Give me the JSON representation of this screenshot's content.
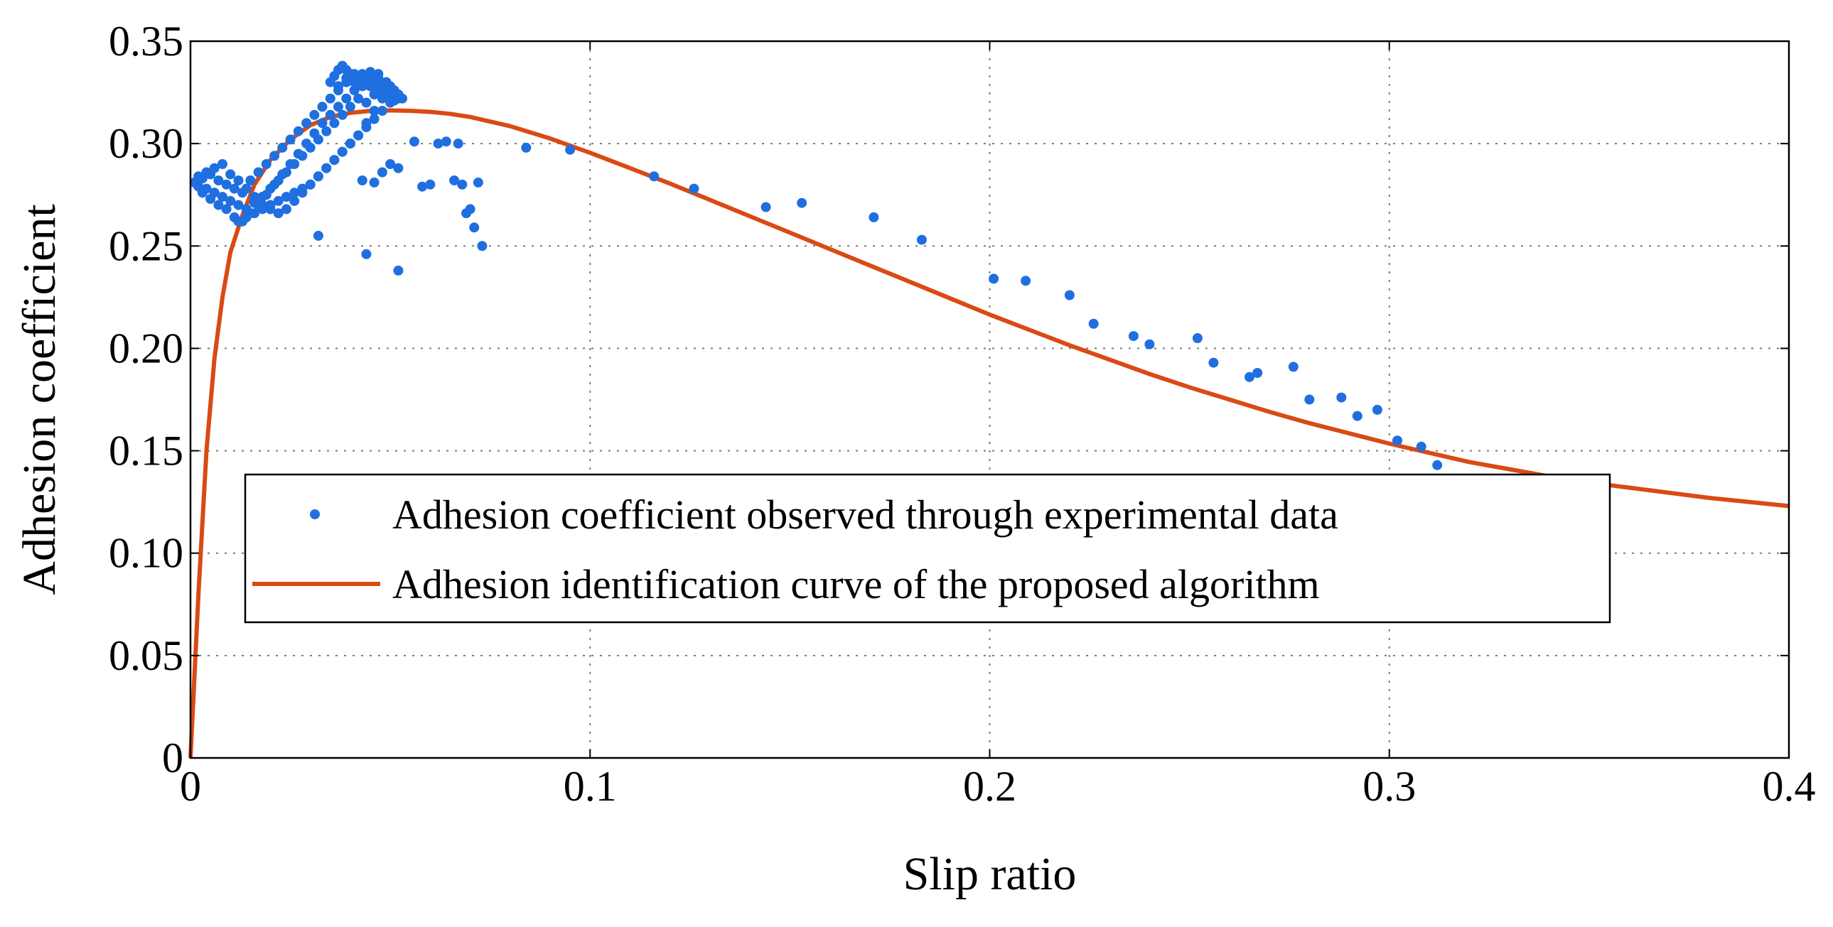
{
  "chart_data": {
    "type": "scatter",
    "title": "",
    "xlabel": "Slip ratio",
    "ylabel": "Adhesion coefficient",
    "xlim": [
      0,
      0.4
    ],
    "ylim": [
      0,
      0.35
    ],
    "grid": true,
    "legend_position": "lower-left",
    "colors": {
      "scatter": "#1f6fe0",
      "curve": "#d94a14",
      "frame": "#000000",
      "grid": "#7a7a7a"
    },
    "x_ticks": [
      "0",
      "0.1",
      "0.2",
      "0.3",
      "0.4"
    ],
    "x_tick_values": [
      0,
      0.1,
      0.2,
      0.3,
      0.4
    ],
    "y_ticks": [
      "0",
      "0.05",
      "0.10",
      "0.15",
      "0.20",
      "0.25",
      "0.30",
      "0.35"
    ],
    "y_tick_values": [
      0,
      0.05,
      0.1,
      0.15,
      0.2,
      0.25,
      0.3,
      0.35
    ],
    "series": [
      {
        "name": "Adhesion coefficient observed through experimental data",
        "kind": "scatter",
        "x": [
          0.001,
          0.002,
          0.003,
          0.004,
          0.005,
          0.006,
          0.007,
          0.008,
          0.009,
          0.01,
          0.011,
          0.012,
          0.013,
          0.014,
          0.015,
          0.016,
          0.017,
          0.018,
          0.019,
          0.02,
          0.021,
          0.022,
          0.023,
          0.024,
          0.025,
          0.026,
          0.027,
          0.028,
          0.029,
          0.03,
          0.031,
          0.032,
          0.033,
          0.034,
          0.035,
          0.036,
          0.037,
          0.038,
          0.039,
          0.04,
          0.041,
          0.042,
          0.043,
          0.044,
          0.045,
          0.046,
          0.047,
          0.048,
          0.049,
          0.05,
          0.051,
          0.052,
          0.002,
          0.004,
          0.006,
          0.008,
          0.01,
          0.012,
          0.014,
          0.016,
          0.018,
          0.02,
          0.022,
          0.024,
          0.026,
          0.028,
          0.03,
          0.032,
          0.034,
          0.036,
          0.038,
          0.04,
          0.042,
          0.044,
          0.046,
          0.048,
          0.05,
          0.003,
          0.005,
          0.007,
          0.009,
          0.011,
          0.013,
          0.015,
          0.017,
          0.019,
          0.021,
          0.023,
          0.025,
          0.027,
          0.029,
          0.031,
          0.033,
          0.035,
          0.037,
          0.039,
          0.041,
          0.043,
          0.045,
          0.047,
          0.049,
          0.012,
          0.014,
          0.016,
          0.018,
          0.02,
          0.022,
          0.024,
          0.026,
          0.028,
          0.03,
          0.032,
          0.034,
          0.036,
          0.038,
          0.04,
          0.042,
          0.044,
          0.046,
          0.048,
          0.05,
          0.052,
          0.036,
          0.037,
          0.038,
          0.039,
          0.04,
          0.041,
          0.042,
          0.043,
          0.044,
          0.045,
          0.046,
          0.047,
          0.048,
          0.049,
          0.05,
          0.051,
          0.052,
          0.053,
          0.035,
          0.037,
          0.039,
          0.041,
          0.043,
          0.045,
          0.047,
          0.049,
          0.051,
          0.032,
          0.044,
          0.052,
          0.04,
          0.043,
          0.046,
          0.048,
          0.05,
          0.052,
          0.056,
          0.058,
          0.06,
          0.062,
          0.064,
          0.066,
          0.067,
          0.068,
          0.069,
          0.07,
          0.071,
          0.072,
          0.073,
          0.084,
          0.095,
          0.116,
          0.126,
          0.144,
          0.153,
          0.171,
          0.183,
          0.201,
          0.209,
          0.22,
          0.226,
          0.236,
          0.24,
          0.252,
          0.256,
          0.265,
          0.267,
          0.276,
          0.28,
          0.288,
          0.292,
          0.297,
          0.302,
          0.308,
          0.312
        ],
        "y": [
          0.281,
          0.279,
          0.283,
          0.278,
          0.285,
          0.276,
          0.282,
          0.274,
          0.28,
          0.272,
          0.278,
          0.27,
          0.276,
          0.268,
          0.282,
          0.271,
          0.286,
          0.274,
          0.29,
          0.278,
          0.294,
          0.282,
          0.298,
          0.286,
          0.302,
          0.29,
          0.306,
          0.294,
          0.31,
          0.298,
          0.314,
          0.302,
          0.318,
          0.306,
          0.322,
          0.31,
          0.326,
          0.314,
          0.33,
          0.318,
          0.334,
          0.322,
          0.33,
          0.32,
          0.328,
          0.324,
          0.332,
          0.326,
          0.33,
          0.328,
          0.326,
          0.324,
          0.284,
          0.286,
          0.288,
          0.29,
          0.285,
          0.282,
          0.278,
          0.274,
          0.27,
          0.268,
          0.266,
          0.268,
          0.272,
          0.276,
          0.28,
          0.284,
          0.288,
          0.292,
          0.296,
          0.3,
          0.304,
          0.308,
          0.312,
          0.316,
          0.32,
          0.276,
          0.273,
          0.27,
          0.268,
          0.264,
          0.262,
          0.266,
          0.27,
          0.275,
          0.28,
          0.285,
          0.29,
          0.295,
          0.3,
          0.305,
          0.31,
          0.314,
          0.318,
          0.322,
          0.326,
          0.33,
          0.332,
          0.334,
          0.33,
          0.262,
          0.264,
          0.266,
          0.268,
          0.27,
          0.272,
          0.274,
          0.276,
          0.278,
          0.28,
          0.284,
          0.288,
          0.292,
          0.296,
          0.3,
          0.304,
          0.31,
          0.316,
          0.322,
          0.326,
          0.322,
          0.333,
          0.336,
          0.338,
          0.336,
          0.334,
          0.332,
          0.33,
          0.328,
          0.333,
          0.335,
          0.331,
          0.329,
          0.327,
          0.325,
          0.323,
          0.321,
          0.324,
          0.322,
          0.33,
          0.328,
          0.332,
          0.33,
          0.334,
          0.328,
          0.326,
          0.33,
          0.325,
          0.255,
          0.246,
          0.238,
          0.3,
          0.282,
          0.281,
          0.286,
          0.29,
          0.288,
          0.301,
          0.279,
          0.28,
          0.3,
          0.301,
          0.282,
          0.3,
          0.28,
          0.266,
          0.268,
          0.259,
          0.281,
          0.25,
          0.298,
          0.297,
          0.284,
          0.278,
          0.269,
          0.271,
          0.264,
          0.253,
          0.234,
          0.233,
          0.226,
          0.212,
          0.206,
          0.202,
          0.205,
          0.193,
          0.186,
          0.188,
          0.191,
          0.175,
          0.176,
          0.167,
          0.17,
          0.155,
          0.152,
          0.143
        ]
      },
      {
        "name": "Adhesion identification curve of the proposed algorithm",
        "kind": "line",
        "x": [
          0,
          0.002,
          0.004,
          0.006,
          0.008,
          0.01,
          0.013,
          0.016,
          0.02,
          0.025,
          0.03,
          0.035,
          0.04,
          0.045,
          0.05,
          0.055,
          0.06,
          0.065,
          0.07,
          0.08,
          0.09,
          0.1,
          0.11,
          0.12,
          0.13,
          0.14,
          0.15,
          0.16,
          0.17,
          0.18,
          0.19,
          0.2,
          0.21,
          0.22,
          0.23,
          0.24,
          0.25,
          0.26,
          0.27,
          0.28,
          0.29,
          0.3,
          0.31,
          0.32,
          0.33,
          0.34,
          0.35,
          0.36,
          0.37,
          0.38,
          0.39,
          0.4
        ],
        "y": [
          0,
          0.08,
          0.15,
          0.195,
          0.225,
          0.247,
          0.265,
          0.28,
          0.292,
          0.302,
          0.309,
          0.313,
          0.315,
          0.316,
          0.3162,
          0.316,
          0.3155,
          0.3145,
          0.313,
          0.3085,
          0.3025,
          0.2955,
          0.288,
          0.2805,
          0.2725,
          0.2645,
          0.2565,
          0.2485,
          0.2405,
          0.2325,
          0.2245,
          0.2165,
          0.209,
          0.2015,
          0.1945,
          0.1875,
          0.181,
          0.175,
          0.169,
          0.1635,
          0.1585,
          0.1535,
          0.149,
          0.1445,
          0.141,
          0.1375,
          0.1345,
          0.132,
          0.1295,
          0.127,
          0.125,
          0.123
        ]
      }
    ]
  }
}
